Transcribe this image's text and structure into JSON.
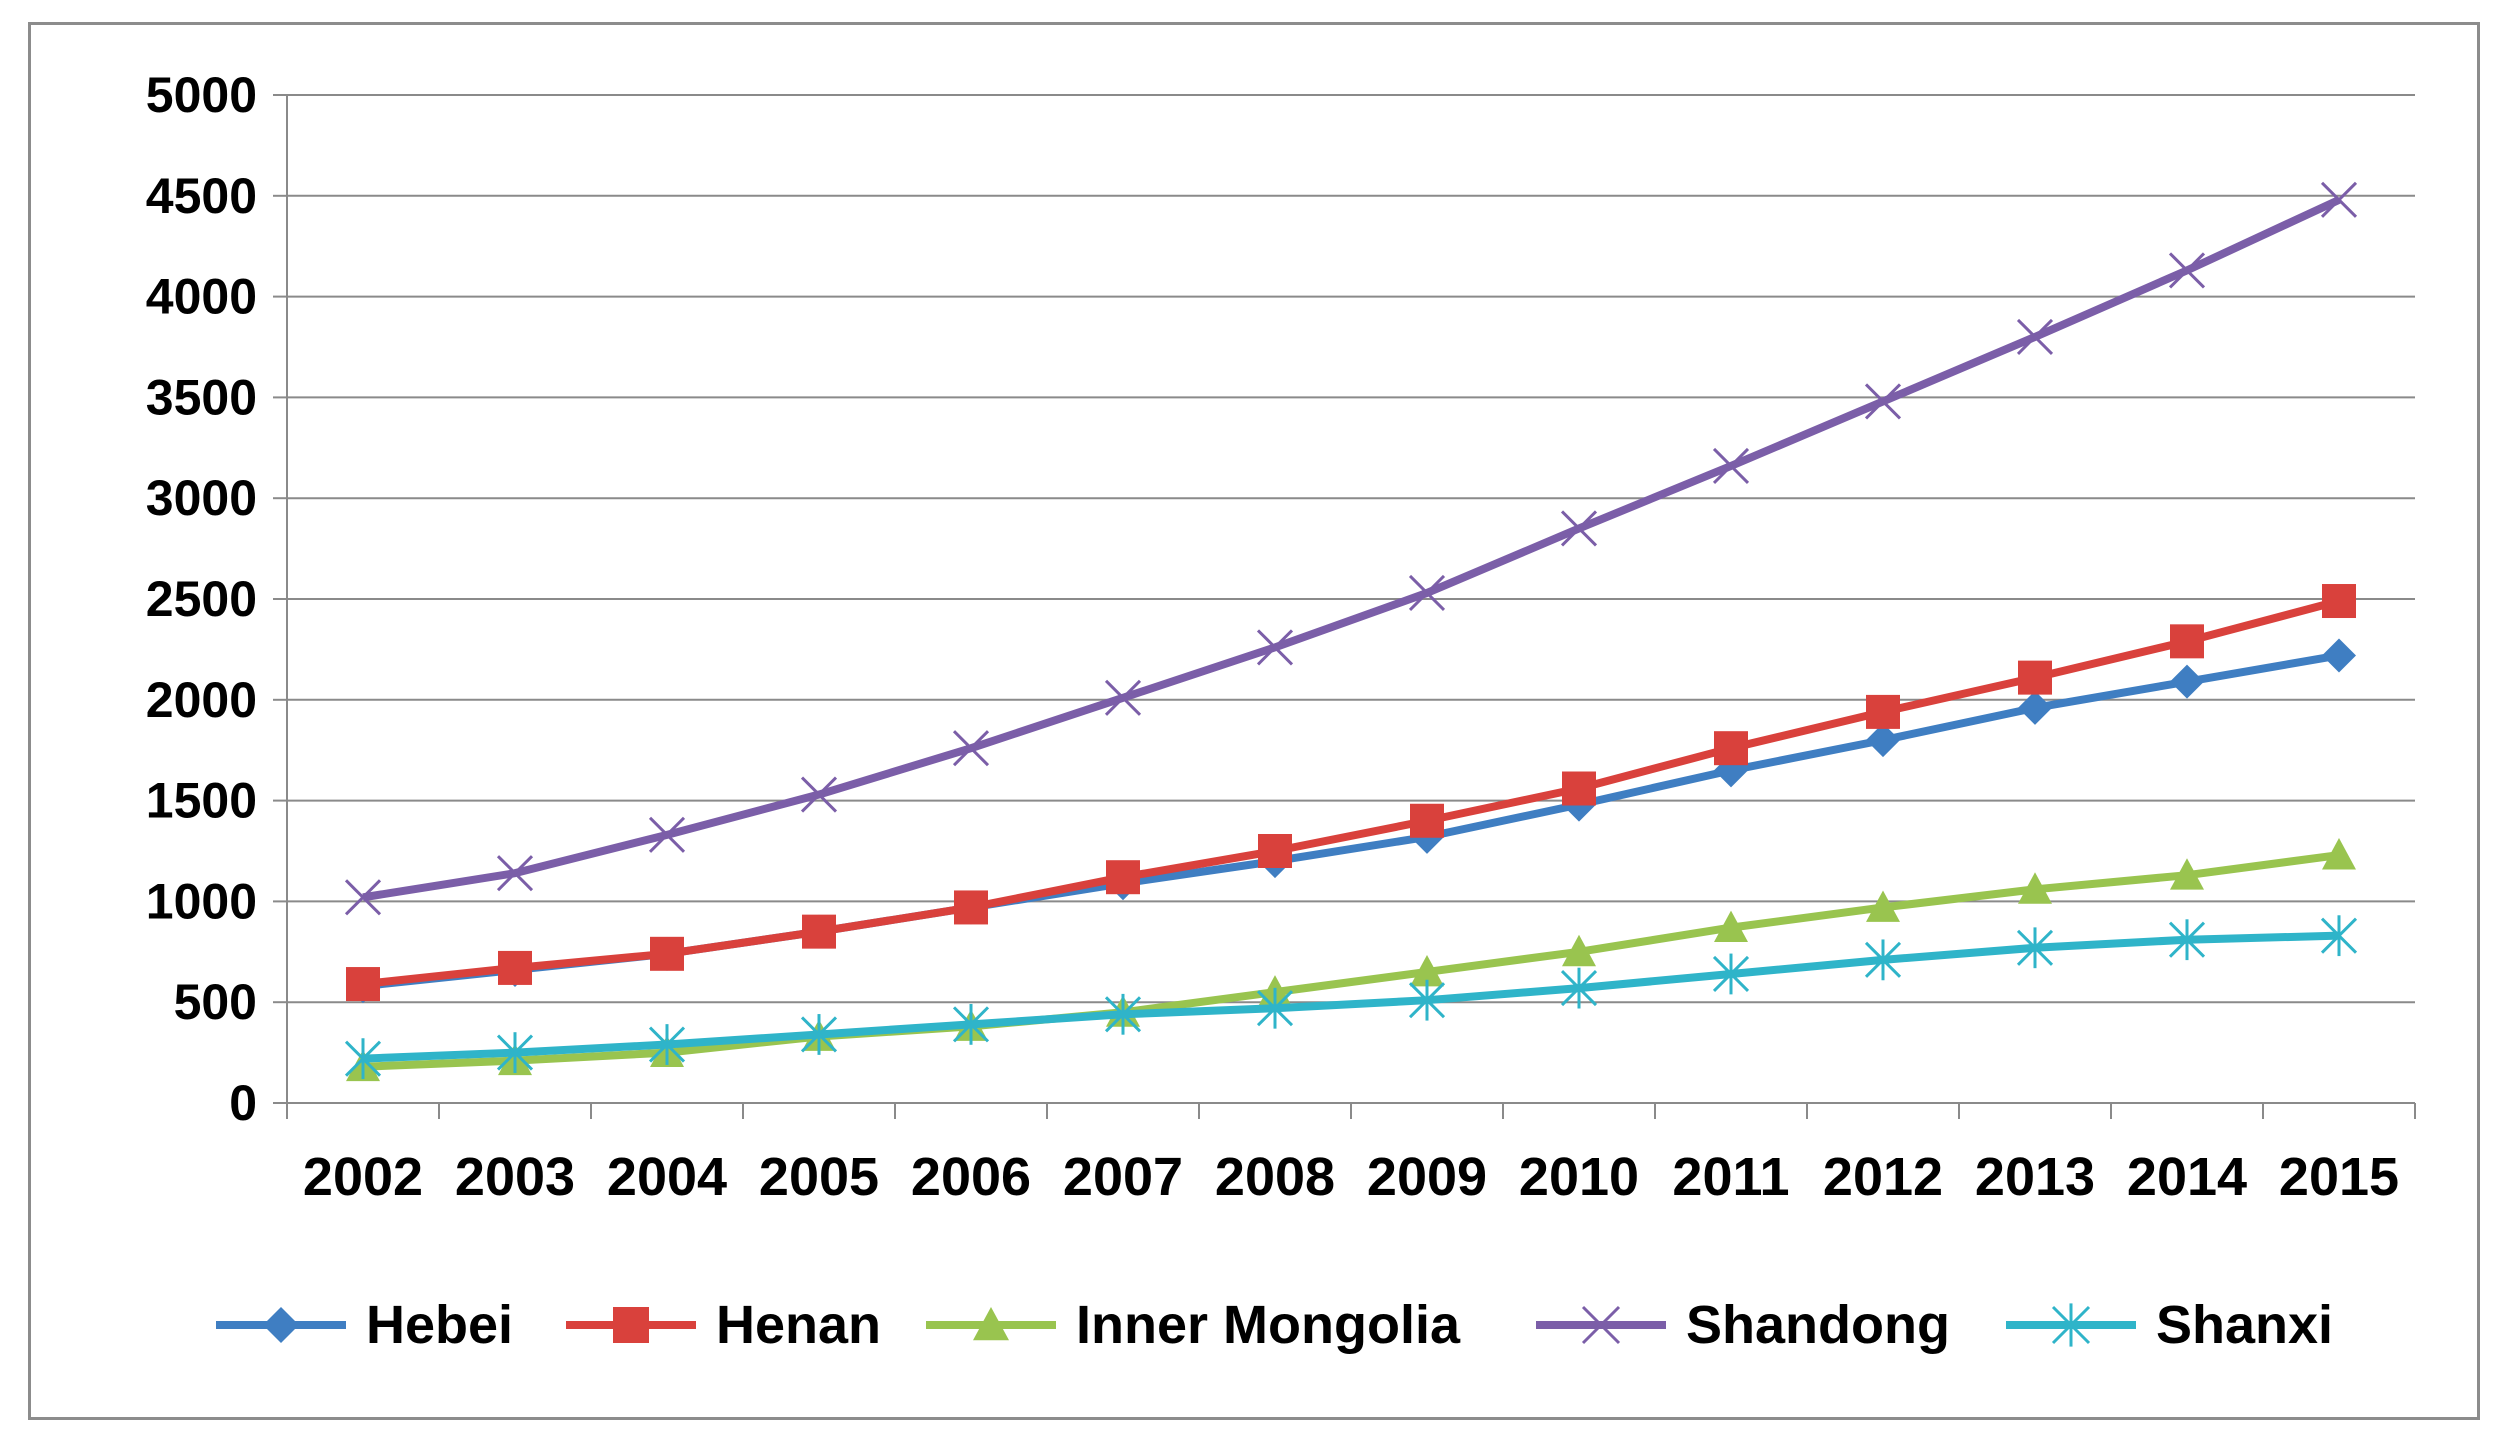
{
  "chart_data": {
    "type": "line",
    "title": "",
    "xlabel": "",
    "ylabel": "",
    "ylim": [
      0,
      5000
    ],
    "yticks": [
      0,
      500,
      1000,
      1500,
      2000,
      2500,
      3000,
      3500,
      4000,
      4500,
      5000
    ],
    "grid": "horizontal",
    "legend": "bottom",
    "categories": [
      "2002",
      "2003",
      "2004",
      "2005",
      "2006",
      "2007",
      "2008",
      "2009",
      "2010",
      "2011",
      "2012",
      "2013",
      "2014",
      "2015"
    ],
    "series": [
      {
        "name": "Hebei",
        "color": "#3f7ec2",
        "marker": "diamond",
        "values": [
          580,
          660,
          740,
          850,
          970,
          1090,
          1200,
          1320,
          1480,
          1650,
          1800,
          1960,
          2090,
          2220
        ]
      },
      {
        "name": "Henan",
        "color": "#d9413c",
        "marker": "square",
        "values": [
          590,
          670,
          740,
          850,
          970,
          1120,
          1250,
          1400,
          1560,
          1760,
          1940,
          2110,
          2290,
          2490
        ]
      },
      {
        "name": "Inner Mongolia",
        "color": "#99c44f",
        "marker": "triangle",
        "values": [
          180,
          210,
          250,
          330,
          380,
          450,
          550,
          650,
          750,
          870,
          970,
          1060,
          1130,
          1230
        ]
      },
      {
        "name": "Shandong",
        "color": "#7b5ea8",
        "marker": "x",
        "values": [
          1020,
          1140,
          1330,
          1530,
          1760,
          2010,
          2260,
          2530,
          2850,
          3160,
          3480,
          3800,
          4130,
          4480
        ]
      },
      {
        "name": "Shanxi",
        "color": "#2fb4c9",
        "marker": "star",
        "values": [
          220,
          250,
          290,
          340,
          390,
          440,
          470,
          510,
          570,
          640,
          710,
          770,
          810,
          830
        ]
      }
    ]
  }
}
